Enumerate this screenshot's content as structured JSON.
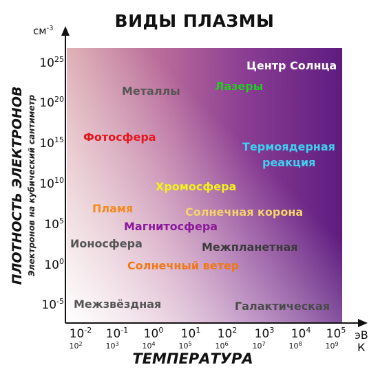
{
  "title": "ВИДЫ ПЛАЗМЫ",
  "y_axis": {
    "title": "ПЛОТНОСТЬ ЭЛЕКТРОНОВ",
    "subtitle": "Электронов на кубический сантиметр",
    "unit_base": "см",
    "unit_exp": "-3",
    "ticks": [
      {
        "base": "10",
        "exp": "25"
      },
      {
        "base": "10",
        "exp": "20"
      },
      {
        "base": "10",
        "exp": "15"
      },
      {
        "base": "10",
        "exp": "10"
      },
      {
        "base": "10",
        "exp": "5"
      },
      {
        "base": "10",
        "exp": "0"
      },
      {
        "base": "10",
        "exp": "-5"
      }
    ]
  },
  "x_axis": {
    "title": "ТЕМПЕРАТУРА",
    "unit_ev": "эВ",
    "unit_k": "К",
    "ticks_ev": [
      {
        "base": "10",
        "exp": "-2"
      },
      {
        "base": "10",
        "exp": "-1"
      },
      {
        "base": "10",
        "exp": "0"
      },
      {
        "base": "10",
        "exp": "1"
      },
      {
        "base": "10",
        "exp": "2"
      },
      {
        "base": "10",
        "exp": "3"
      },
      {
        "base": "10",
        "exp": "4"
      },
      {
        "base": "10",
        "exp": "5"
      }
    ],
    "ticks_k": [
      {
        "base": "10",
        "exp": "2"
      },
      {
        "base": "10",
        "exp": "3"
      },
      {
        "base": "10",
        "exp": "4"
      },
      {
        "base": "10",
        "exp": "5"
      },
      {
        "base": "10",
        "exp": "6"
      },
      {
        "base": "10",
        "exp": "7"
      },
      {
        "base": "10",
        "exp": "8"
      },
      {
        "base": "10",
        "exp": "9"
      }
    ]
  },
  "regions": [
    {
      "name": "Центр Солнца",
      "color": "#ffffff"
    },
    {
      "name": "Лазеры",
      "color": "#22cc22"
    },
    {
      "name": "Металлы",
      "color": "#555555"
    },
    {
      "name": "Фотосфера",
      "color": "#e8141b"
    },
    {
      "name": "Термоядерная",
      "color": "#3fd0f0"
    },
    {
      "name": "реакция",
      "color": "#3fd0f0"
    },
    {
      "name": "Хромосфера",
      "color": "#f2f21a"
    },
    {
      "name": "Пламя",
      "color": "#f28a1e"
    },
    {
      "name": "Солнечная корона",
      "color": "#f5d36a"
    },
    {
      "name": "Магнитосфера",
      "color": "#8a1a9a"
    },
    {
      "name": "Ионосфера",
      "color": "#555555"
    },
    {
      "name": "Межпланетная",
      "color": "#3a3a3a"
    },
    {
      "name": "Солнечный ветер",
      "color": "#f07818"
    },
    {
      "name": "Межзвёздная",
      "color": "#555555"
    },
    {
      "name": "Галактическая",
      "color": "#4a4a4a"
    }
  ]
}
